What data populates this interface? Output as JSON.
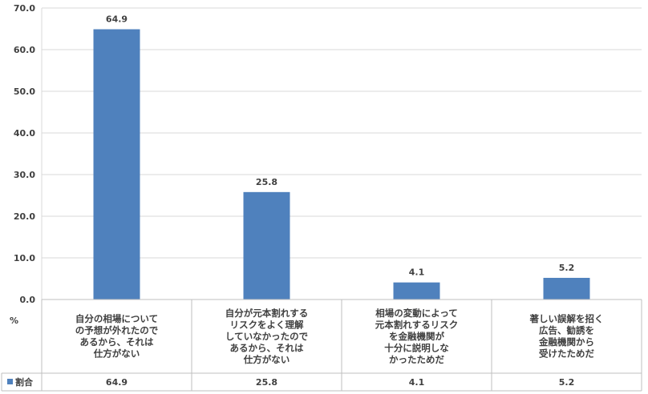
{
  "chart_data": {
    "type": "bar",
    "categories": [
      [
        "自分の相場について",
        "の予想が外れたので",
        "あるから、それは",
        "仕方がない"
      ],
      [
        "自分が元本割れする",
        "リスクをよく理解",
        "していなかったので",
        "あるから、それは",
        "仕方がない"
      ],
      [
        "相場の変動によって",
        "元本割れするリスク",
        "を金融機関が",
        "十分に説明しな",
        "かったためだ"
      ],
      [
        "著しい誤解を招く",
        "広告、勧誘を",
        "金融機関から",
        "受けたためだ"
      ]
    ],
    "series": [
      {
        "name": "割合",
        "values": [
          64.9,
          25.8,
          4.1,
          5.2
        ],
        "color": "#4f81bd"
      }
    ],
    "data_labels": [
      "64.9",
      "25.8",
      "4.1",
      "5.2"
    ],
    "y_ticks": [
      "0.0",
      "10.0",
      "20.0",
      "30.0",
      "40.0",
      "50.0",
      "60.0",
      "70.0"
    ],
    "ylabel": "%",
    "ylim": [
      0,
      70
    ],
    "grid": true,
    "legend": "data-table"
  }
}
